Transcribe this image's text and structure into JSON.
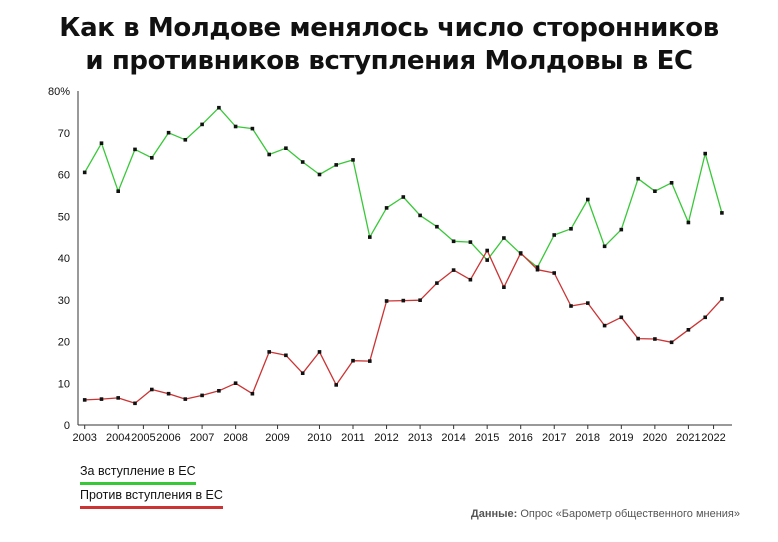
{
  "title": {
    "line1": "Как в Молдове менялось число сторонников",
    "line2": "и противников вступления Молдовы в ЕС"
  },
  "legend": {
    "for_label": "За вступление в ЕС",
    "against_label": "Против  вступления в ЕС"
  },
  "source": {
    "prefix": "Данные:",
    "text": " Опрос «Барометр общественного мнения»"
  },
  "colors": {
    "for": "#37c837",
    "against": "#cc3333",
    "axis": "#333333",
    "marker": "#111111"
  },
  "chart_data": {
    "type": "line",
    "title": "Как в Молдове менялось число сторонников и противников вступления Молдовы в ЕС",
    "xlabel": "",
    "ylabel": "",
    "ylim": [
      0,
      80
    ],
    "xlim": [
      2002.8,
      2022.3
    ],
    "y_ticks": [
      "0",
      "10",
      "20",
      "30",
      "40",
      "50",
      "60",
      "70",
      "80%"
    ],
    "x_ticks": [
      "2003",
      "2004",
      "2005",
      "2006",
      "2007",
      "2008",
      "2009",
      "2010",
      "2011",
      "2012",
      "2013",
      "2014",
      "2015",
      "2016",
      "2017",
      "2018",
      "2019",
      "2020",
      "2021",
      "2022"
    ],
    "x_tick_positions": [
      2003,
      2004,
      2004.75,
      2005.5,
      2006.5,
      2007.5,
      2008.75,
      2010,
      2011,
      2012,
      2013,
      2014,
      2015,
      2016,
      2017,
      2018,
      2019,
      2020,
      2021,
      2021.75
    ],
    "grid": false,
    "legend_position": "bottom-left",
    "series": [
      {
        "name": "За вступление в ЕС",
        "color": "#37c837",
        "x": [
          2003,
          2003.5,
          2004,
          2004.5,
          2005,
          2005.5,
          2006,
          2006.5,
          2007,
          2007.5,
          2008,
          2008.5,
          2009,
          2009.5,
          2010,
          2010.5,
          2011,
          2011.5,
          2012,
          2012.5,
          2013,
          2013.5,
          2014,
          2014.5,
          2015,
          2015.5,
          2016,
          2016.5,
          2017,
          2017.5,
          2018,
          2018.5,
          2019,
          2019.5,
          2020,
          2020.5,
          2021,
          2021.5,
          2022
        ],
        "values": [
          60.5,
          67.5,
          56,
          66,
          64,
          70,
          68.3,
          72,
          76,
          71.5,
          71,
          64.8,
          66.3,
          63,
          60,
          62.3,
          63.5,
          45,
          52,
          54.6,
          50.2,
          47.5,
          44,
          43.8,
          39.5,
          44.8,
          41,
          37.8,
          45.5,
          47,
          54,
          42.8,
          46.8,
          59,
          56,
          58,
          48.5,
          65,
          50.8
        ]
      },
      {
        "name": "Против  вступления в ЕС",
        "color": "#cc3333",
        "x": [
          2003,
          2003.5,
          2004,
          2004.5,
          2005,
          2005.5,
          2006,
          2006.5,
          2007,
          2007.5,
          2008,
          2008.5,
          2009,
          2009.5,
          2010,
          2010.5,
          2011,
          2011.5,
          2012,
          2012.5,
          2013,
          2013.5,
          2014,
          2014.5,
          2015,
          2015.5,
          2016,
          2016.5,
          2017,
          2017.5,
          2018,
          2018.5,
          2019,
          2019.5,
          2020,
          2020.5,
          2021,
          2021.5,
          2022
        ],
        "values": [
          6,
          6.2,
          6.5,
          5.2,
          8.5,
          7.5,
          6.2,
          7.1,
          8.2,
          10,
          7.5,
          17.5,
          16.7,
          12.4,
          17.5,
          9.6,
          15.4,
          15.3,
          29.7,
          29.8,
          29.9,
          34,
          37.1,
          34.8,
          41.8,
          33,
          41.2,
          37.2,
          36.4,
          28.5,
          29.2,
          23.8,
          25.8,
          20.7,
          20.6,
          19.8,
          22.8,
          25.8,
          30.2
        ]
      }
    ]
  }
}
